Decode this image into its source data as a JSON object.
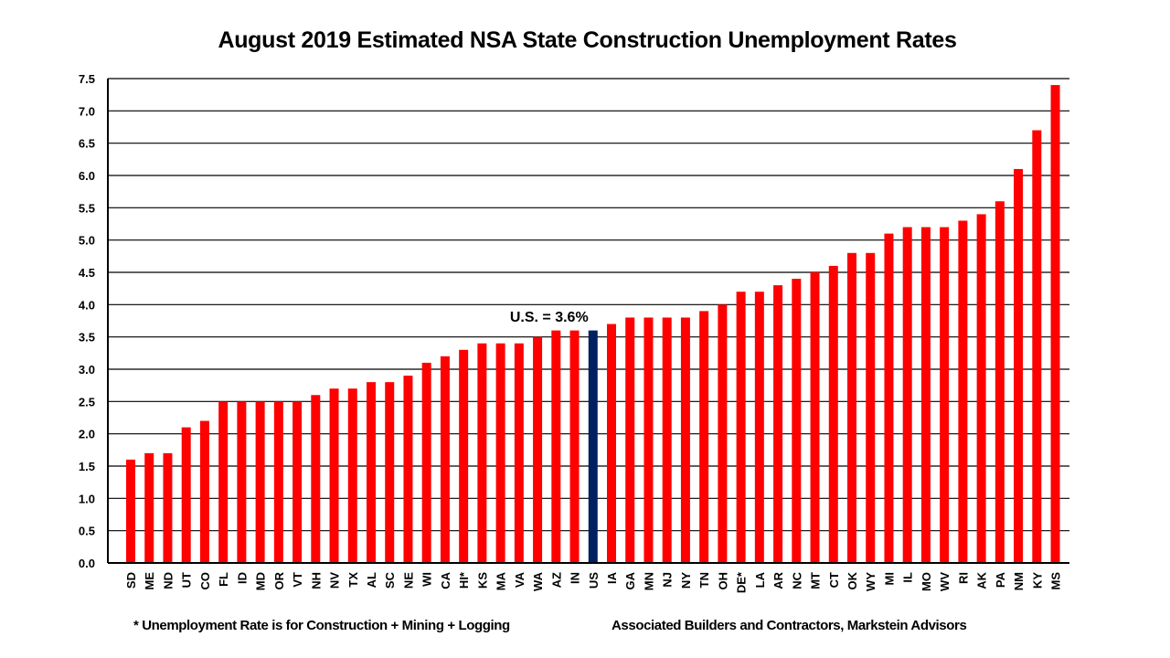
{
  "chart_data": {
    "type": "bar",
    "title": "August 2019 Estimated NSA State Construction Unemployment Rates",
    "xlabel": "",
    "ylabel": "",
    "ylim": [
      0,
      7.5
    ],
    "yticks": [
      "0.0",
      "0.5",
      "1.0",
      "1.5",
      "2.0",
      "2.5",
      "3.0",
      "3.5",
      "4.0",
      "4.5",
      "5.0",
      "5.5",
      "6.0",
      "6.5",
      "7.0",
      "7.5"
    ],
    "grid": true,
    "categories": [
      "SD",
      "ME",
      "ND",
      "UT",
      "CO",
      "FL",
      "ID",
      "MD",
      "OR",
      "VT",
      "NH",
      "NV",
      "TX",
      "AL",
      "SC",
      "NE",
      "WI",
      "CA",
      "HI*",
      "KS",
      "MA",
      "VA",
      "WA",
      "AZ",
      "IN",
      "US",
      "IA",
      "GA",
      "MN",
      "NJ",
      "NY",
      "TN",
      "OH",
      "DE*",
      "LA",
      "AR",
      "NC",
      "MT",
      "CT",
      "OK",
      "WY",
      "MI",
      "IL",
      "MO",
      "WV",
      "RI",
      "AK",
      "PA",
      "NM",
      "KY",
      "MS"
    ],
    "values": [
      1.6,
      1.7,
      1.7,
      2.1,
      2.2,
      2.5,
      2.5,
      2.5,
      2.5,
      2.5,
      2.6,
      2.7,
      2.7,
      2.8,
      2.8,
      2.9,
      3.1,
      3.2,
      3.3,
      3.4,
      3.4,
      3.4,
      3.5,
      3.6,
      3.6,
      3.6,
      3.7,
      3.8,
      3.8,
      3.8,
      3.8,
      3.9,
      4.0,
      4.2,
      4.2,
      4.3,
      4.4,
      4.5,
      4.6,
      4.8,
      4.8,
      5.1,
      5.2,
      5.2,
      5.2,
      5.3,
      5.4,
      5.6,
      6.1,
      6.7,
      7.4
    ],
    "highlight_category": "US",
    "colors": {
      "bar": "#ff0000",
      "highlight": "#002060",
      "grid": "#000000"
    },
    "annotation": {
      "text": "U.S. = 3.6%",
      "category": "US"
    }
  },
  "footnotes": {
    "left": "* Unemployment Rate is for Construction + Mining + Logging",
    "right": "Associated Builders and Contractors, Markstein Advisors"
  }
}
